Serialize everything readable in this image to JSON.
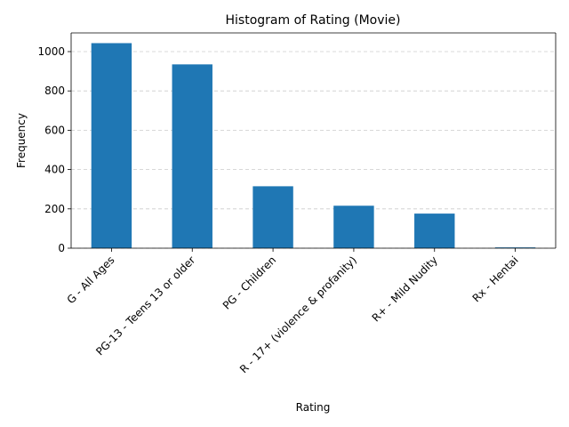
{
  "chart_data": {
    "type": "bar",
    "title": "Histogram of Rating (Movie)",
    "xlabel": "Rating",
    "ylabel": "Frequency",
    "categories": [
      "G - All Ages",
      "PG-13 - Teens 13 or older",
      "PG - Children",
      "R - 17+ (violence & profanity)",
      "R+ - Mild Nudity",
      "Rx - Hentai"
    ],
    "values": [
      1043,
      935,
      315,
      216,
      176,
      4
    ],
    "ylim": [
      0,
      1095
    ],
    "yticks": [
      0,
      200,
      400,
      600,
      800,
      1000
    ],
    "grid": "y-dashed",
    "bar_color": "#1f77b4",
    "grid_color": "#cccccc"
  }
}
